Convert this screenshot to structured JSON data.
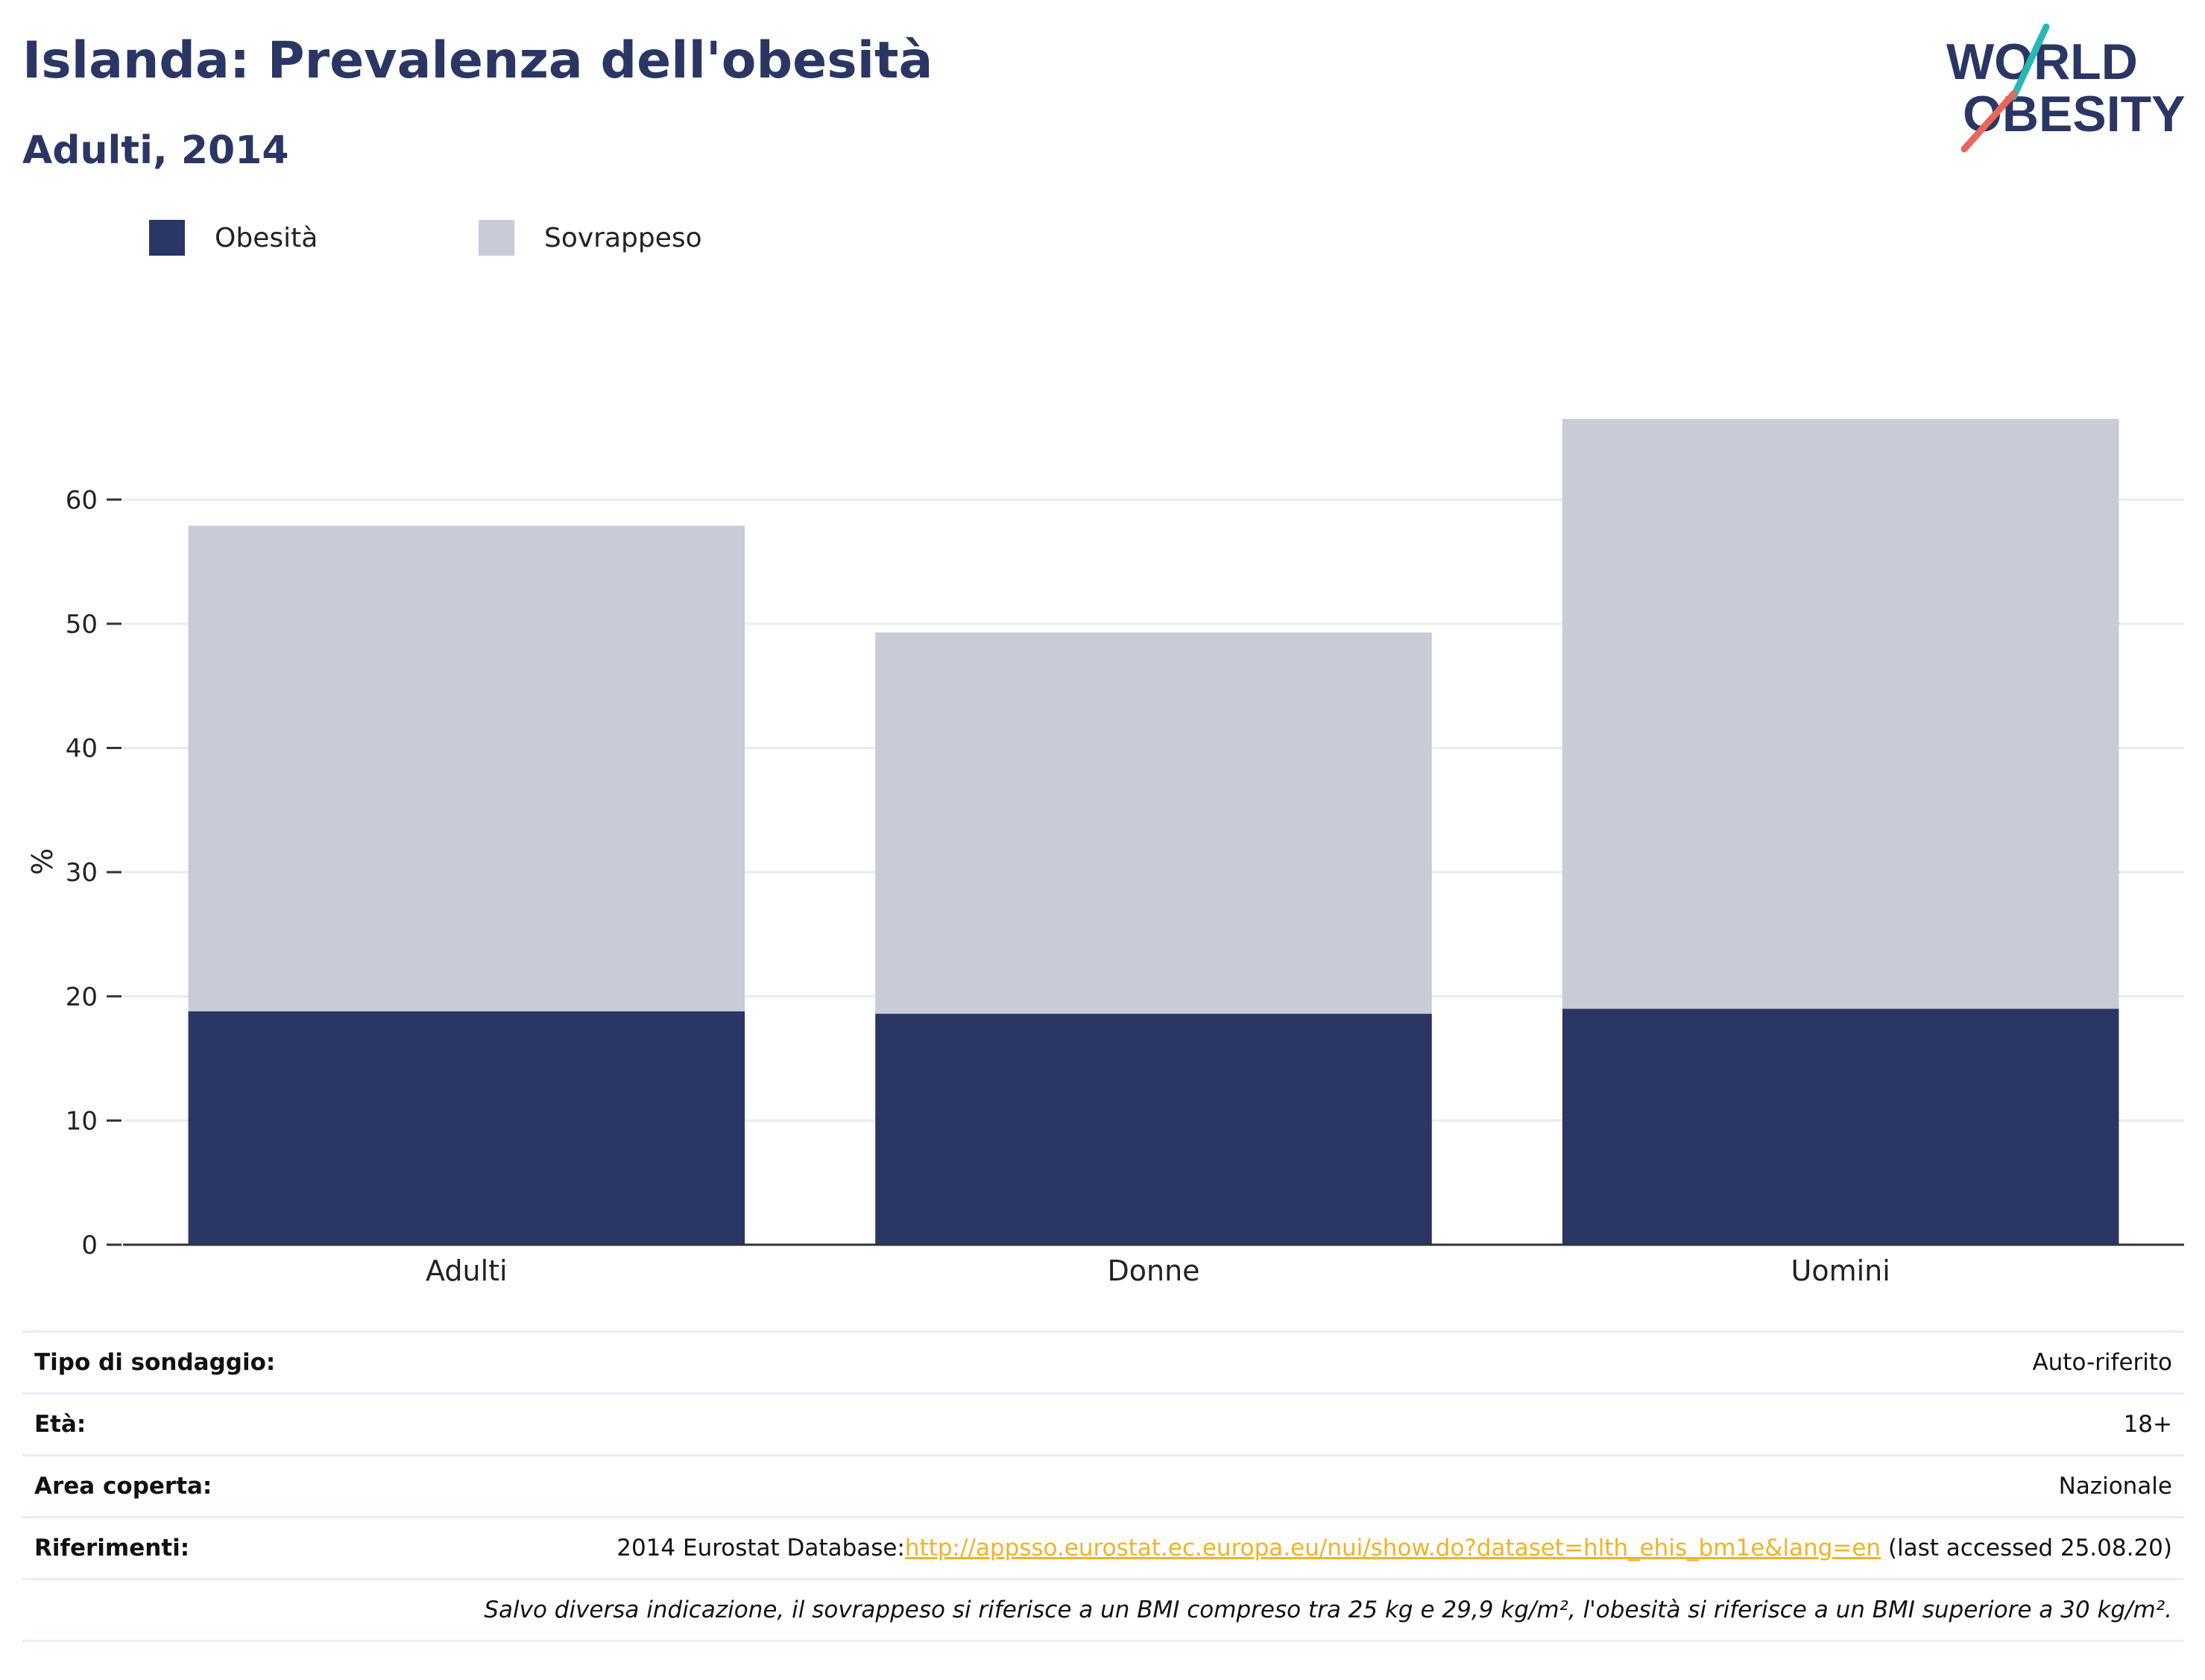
{
  "header": {
    "title": "Islanda: Prevalenza dell'obesità",
    "subtitle": "Adulti, 2014",
    "logo": {
      "line1": "WORLD",
      "line2": "OBESITY",
      "accent_colors": [
        "#2bb6b4",
        "#e8665a"
      ],
      "text_color": "#2a3663"
    }
  },
  "legend": [
    {
      "label": "Obesità",
      "color": "#2a3663"
    },
    {
      "label": "Sovrappeso",
      "color": "#c9cbd7"
    }
  ],
  "chart_data": {
    "type": "bar",
    "stacked": true,
    "categories": [
      "Adulti",
      "Donne",
      "Uomini"
    ],
    "series": [
      {
        "name": "Obesità",
        "values": [
          18.8,
          18.6,
          19.0
        ],
        "color": "#2a3663"
      },
      {
        "name": "Sovrappeso",
        "values": [
          39.1,
          30.7,
          47.5
        ],
        "color": "#c9cbd7"
      }
    ],
    "ylabel": "%",
    "ylim": [
      0,
      66.5
    ],
    "yticks": [
      "0",
      "10",
      "20",
      "30",
      "40",
      "50",
      "60"
    ],
    "grid": true,
    "legend_position": "top-left"
  },
  "info": {
    "rows": [
      {
        "label": "Tipo di sondaggio:",
        "value": "Auto-riferito"
      },
      {
        "label": "Età:",
        "value": "18+"
      },
      {
        "label": "Area coperta:",
        "value": "Nazionale"
      }
    ],
    "references": {
      "label": "Riferimenti:",
      "prefix": "2014 Eurostat Database:",
      "link": "http://appsso.eurostat.ec.europa.eu/nui/show.do?dataset=hlth_ehis_bm1e&lang=en",
      "suffix": " (last accessed 25.08.20)"
    },
    "note": "Salvo diversa indicazione, il sovrappeso si riferisce a un BMI compreso tra 25 kg e 29,9 kg/m², l'obesità si riferisce a un BMI superiore a 30 kg/m²."
  }
}
